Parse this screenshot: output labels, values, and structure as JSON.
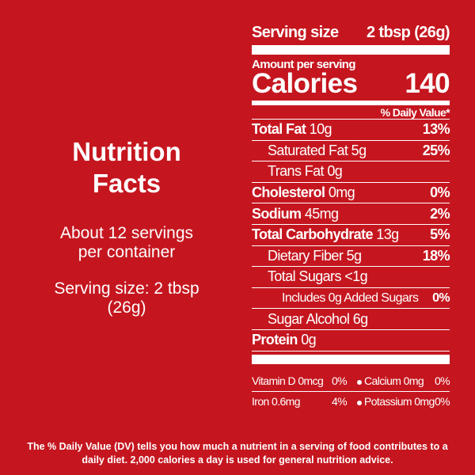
{
  "intro": {
    "title": "Nutrition Facts",
    "servings": "About 12 servings per container",
    "serving_size": "Serving size: 2 tbsp (26g)"
  },
  "label": {
    "serving_size": {
      "label": "Serving size",
      "value": "2 tbsp (26g)"
    },
    "amount_per_serving": "Amount per serving",
    "calories": {
      "label": "Calories",
      "value": "140"
    },
    "dv_header": "% Daily Value*",
    "nutrients": [
      {
        "name": "Total Fat",
        "amount": "10g",
        "dv": "13%"
      },
      {
        "name": "Saturated Fat",
        "amount": "5g",
        "dv": "25%"
      },
      {
        "name": "Trans Fat",
        "amount": "0g"
      },
      {
        "name": "Cholesterol",
        "amount": "0mg",
        "dv": "0%"
      },
      {
        "name": "Sodium",
        "amount": "45mg",
        "dv": "2%"
      },
      {
        "name": "Total Carbohydrate",
        "amount": "13g",
        "dv": "5%"
      },
      {
        "name": "Dietary Fiber",
        "amount": "5g",
        "dv": "18%"
      },
      {
        "name": "Total Sugars",
        "amount": "<1g"
      },
      {
        "name": "Includes 0g Added Sugars",
        "dv": "0%"
      },
      {
        "name": "Sugar Alcohol",
        "amount": "6g"
      },
      {
        "name": "Protein",
        "amount": "0g"
      }
    ],
    "micronutrients": [
      [
        {
          "name": "Vitamin D 0mcg",
          "dv": "0%"
        },
        {
          "name": "Calcium 0mg",
          "dv": "0%"
        }
      ],
      [
        {
          "name": "Iron 0.6mg",
          "dv": "4%"
        },
        {
          "name": "Potassium 0mg",
          "dv": "0%"
        }
      ]
    ]
  },
  "footnote": "The % Daily Value (DV) tells you how much a nutrient in a serving of food contributes to a daily diet. 2,000 calories a day is used for general nutrition advice."
}
